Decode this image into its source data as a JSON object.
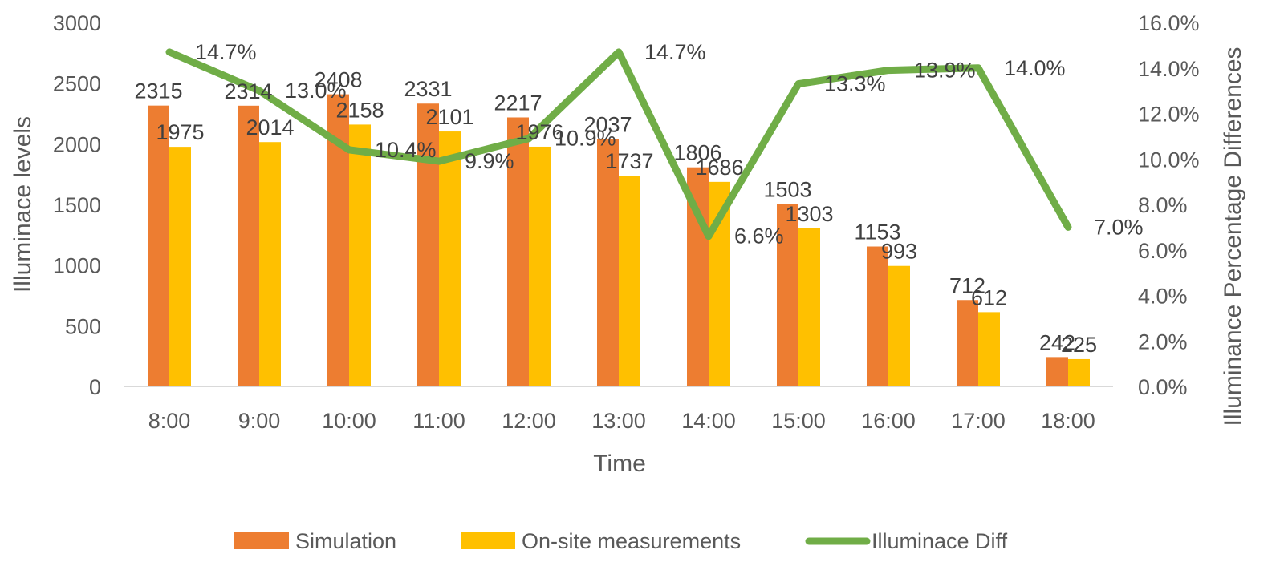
{
  "chart_data": {
    "type": "bar",
    "categories": [
      "8:00",
      "9:00",
      "10:00",
      "11:00",
      "12:00",
      "13:00",
      "14:00",
      "15:00",
      "16:00",
      "17:00",
      "18:00"
    ],
    "series": [
      {
        "name": "Simulation",
        "type": "bar",
        "axis": "left",
        "color": "#ED7D31",
        "values": [
          2315,
          2314,
          2408,
          2331,
          2217,
          2037,
          1806,
          1503,
          1153,
          712,
          242
        ]
      },
      {
        "name": "On-site measurements",
        "type": "bar",
        "axis": "left",
        "color": "#FFC000",
        "values": [
          1975,
          2014,
          2158,
          2101,
          1976,
          1737,
          1686,
          1303,
          993,
          612,
          225
        ]
      },
      {
        "name": "Illuminace Diff",
        "type": "line",
        "axis": "right",
        "color": "#70AD47",
        "values": [
          14.7,
          13.0,
          10.4,
          9.9,
          10.9,
          14.7,
          6.6,
          13.3,
          13.9,
          14.0,
          7.0
        ],
        "labels": [
          "14.7%",
          "13.0%",
          "10.4%",
          "9.9%",
          "10.9%",
          "14.7%",
          "6.6%",
          "13.3%",
          "13.9%",
          "14.0%",
          "7.0%"
        ]
      }
    ],
    "xlabel": "Time",
    "ylabel": "Illuminace levels",
    "y2label": "Illuminance Percentage Differences",
    "ylim": [
      0,
      3000
    ],
    "yticks": [
      "0",
      "500",
      "1000",
      "1500",
      "2000",
      "2500",
      "3000"
    ],
    "y2lim": [
      0,
      16
    ],
    "y2ticks": [
      "0.0%",
      "2.0%",
      "4.0%",
      "6.0%",
      "8.0%",
      "10.0%",
      "12.0%",
      "14.0%",
      "16.0%"
    ],
    "grid": false,
    "legend_position": "bottom"
  }
}
